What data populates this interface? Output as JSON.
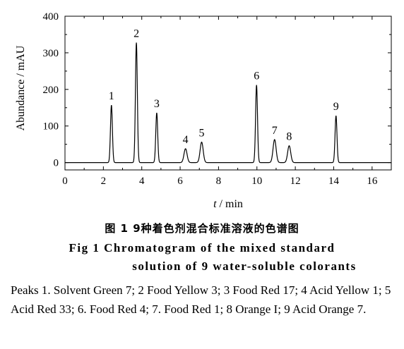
{
  "chart_data": {
    "type": "line",
    "xlabel_italic": "t",
    "xlabel_rest": " / min",
    "ylabel": "Abundance / mAU",
    "xlim": [
      0,
      17
    ],
    "ylim": [
      -20,
      400
    ],
    "xticks": [
      0,
      2,
      4,
      6,
      8,
      10,
      12,
      14,
      16
    ],
    "yticks": [
      0,
      100,
      200,
      300,
      400
    ],
    "grid": false,
    "peaks": [
      {
        "label": "1",
        "x": 2.42,
        "y": 157
      },
      {
        "label": "2",
        "x": 3.72,
        "y": 328
      },
      {
        "label": "3",
        "x": 4.78,
        "y": 136
      },
      {
        "label": "4",
        "x": 6.28,
        "y": 38
      },
      {
        "label": "5",
        "x": 7.12,
        "y": 56
      },
      {
        "label": "6",
        "x": 9.98,
        "y": 212
      },
      {
        "label": "7",
        "x": 10.92,
        "y": 63
      },
      {
        "label": "8",
        "x": 11.68,
        "y": 46
      },
      {
        "label": "9",
        "x": 14.12,
        "y": 128
      }
    ],
    "baseline": 0
  },
  "caption": {
    "cn": "图 1   9种着色剂混合标准溶液的色谱图",
    "en_line1": "Fig 1   Chromatogram of the mixed standard",
    "en_line2": "solution of 9 water-soluble colorants"
  },
  "peaks_note": "Peaks 1. Solvent Green 7; 2 Food Yellow 3; 3 Food Red 17; 4 Acid Yellow 1; 5 Acid Red 33; 6. Food Red 4; 7. Food Red 1; 8 Orange I; 9 Acid Orange 7."
}
